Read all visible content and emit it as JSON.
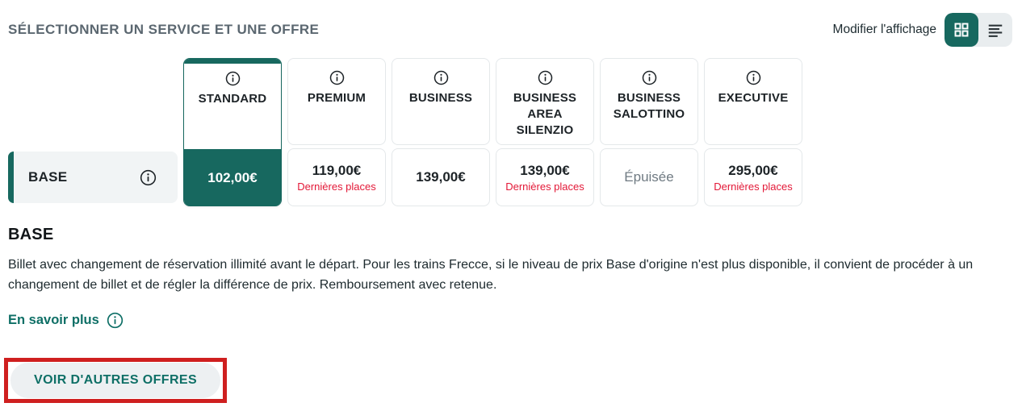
{
  "header": {
    "title": "SÉLECTIONNER UN SERVICE ET UNE OFFRE",
    "display_label": "Modifier l'affichage",
    "active_view": "grid"
  },
  "colors": {
    "accent_teal": "#17685f",
    "alert_red": "#e31837",
    "annotation_red": "#cf1f1f",
    "title_gray": "#5b6770",
    "soldout_gray": "#6f7a82"
  },
  "services": [
    {
      "label": "STANDARD",
      "selected": true,
      "price": "102,00€",
      "note": "",
      "soldout": ""
    },
    {
      "label": "PREMIUM",
      "selected": false,
      "price": "119,00€",
      "note": "Dernières places",
      "soldout": ""
    },
    {
      "label": "BUSINESS",
      "selected": false,
      "price": "139,00€",
      "note": "",
      "soldout": ""
    },
    {
      "label": "BUSINESS AREA SILENZIO",
      "selected": false,
      "price": "139,00€",
      "note": "Dernières places",
      "soldout": ""
    },
    {
      "label": "BUSINESS SALOTTINO",
      "selected": false,
      "price": "",
      "note": "",
      "soldout": "Épuisée"
    },
    {
      "label": "EXECUTIVE",
      "selected": false,
      "price": "295,00€",
      "note": "Dernières places",
      "soldout": ""
    }
  ],
  "offer_row": {
    "label": "BASE"
  },
  "details": {
    "heading": "BASE",
    "description": "Billet avec changement de réservation illimité avant le départ. Pour les trains Frecce, si le niveau de prix Base d'origine n'est plus disponible, il convient de procéder à un changement de billet et de régler la différence de prix. Remboursement avec retenue.",
    "more_link": "En savoir plus",
    "other_offers_button": "VOIR D'AUTRES OFFRES"
  }
}
